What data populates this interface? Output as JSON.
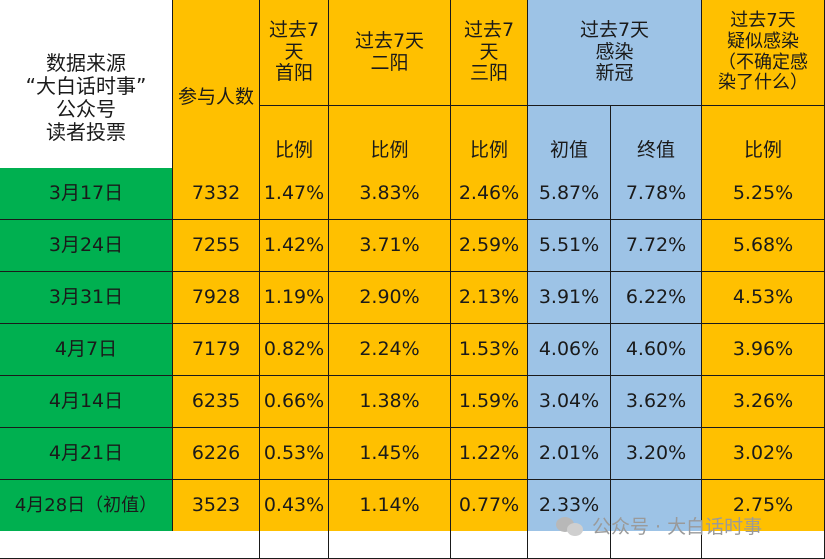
{
  "header": {
    "source_label": "数据来源\n“大白话时事”\n公众号\n读者投票",
    "participants_label": "参与人数",
    "first_positive": "过去7\n天\n首阳",
    "second_positive": "过去7天\n二阳",
    "third_positive": "过去7\n天\n三阳",
    "infected_group": "过去7天\n感染\n新冠",
    "suspected": "过去7天\n疑似感染\n（不确定感\n染了什么）",
    "ratio": "比例",
    "initial": "初值",
    "final": "终值"
  },
  "rows": [
    {
      "date": "3月17日",
      "participants": "7332",
      "first": "1.47%",
      "second": "3.83%",
      "third": "2.46%",
      "initial": "5.87%",
      "final": "7.78%",
      "suspected": "5.25%"
    },
    {
      "date": "3月24日",
      "participants": "7255",
      "first": "1.42%",
      "second": "3.71%",
      "third": "2.59%",
      "initial": "5.51%",
      "final": "7.72%",
      "suspected": "5.68%"
    },
    {
      "date": "3月31日",
      "participants": "7928",
      "first": "1.19%",
      "second": "2.90%",
      "third": "2.13%",
      "initial": "3.91%",
      "final": "6.22%",
      "suspected": "4.53%"
    },
    {
      "date": "4月7日",
      "participants": "7179",
      "first": "0.82%",
      "second": "2.24%",
      "third": "1.53%",
      "initial": "4.06%",
      "final": "4.60%",
      "suspected": "3.96%"
    },
    {
      "date": "4月14日",
      "participants": "6235",
      "first": "0.66%",
      "second": "1.38%",
      "third": "1.59%",
      "initial": "3.04%",
      "final": "3.62%",
      "suspected": "3.26%"
    },
    {
      "date": "4月21日",
      "participants": "6226",
      "first": "0.53%",
      "second": "1.45%",
      "third": "1.22%",
      "initial": "2.01%",
      "final": "3.20%",
      "suspected": "3.02%"
    },
    {
      "date": "4月28日（初值）",
      "participants": "3523",
      "first": "0.43%",
      "second": "1.14%",
      "third": "0.77%",
      "initial": "2.33%",
      "final": "",
      "suspected": "2.75%"
    }
  ],
  "watermark": "公众号 · 大白话时事",
  "colors": {
    "orange": "#ffc000",
    "blue": "#9dc3e6",
    "green": "#00b050"
  }
}
